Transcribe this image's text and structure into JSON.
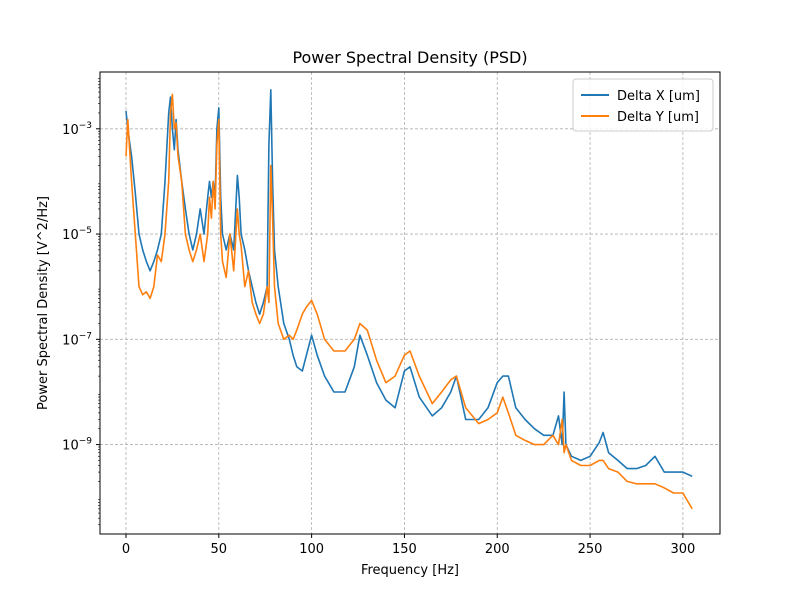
{
  "chart_data": {
    "type": "line",
    "title": "Power Spectral Density (PSD)",
    "xlabel": "Frequency [Hz]",
    "ylabel": "Power Spectral Density [V^2/Hz]",
    "xlim": [
      -14,
      320
    ],
    "ylim": [
      2e-11,
      0.012
    ],
    "yscale": "log",
    "grid": true,
    "legend_position": "top-right",
    "x_ticks": [
      {
        "value": 0,
        "label": "0"
      },
      {
        "value": 50,
        "label": "50"
      },
      {
        "value": 100,
        "label": "100"
      },
      {
        "value": 150,
        "label": "150"
      },
      {
        "value": 200,
        "label": "200"
      },
      {
        "value": 250,
        "label": "250"
      },
      {
        "value": 300,
        "label": "300"
      }
    ],
    "y_ticks": [
      {
        "value": 0.001,
        "base": "10",
        "exp": "−3"
      },
      {
        "value": 1e-05,
        "base": "10",
        "exp": "−5"
      },
      {
        "value": 1e-07,
        "base": "10",
        "exp": "−7"
      },
      {
        "value": 1e-09,
        "base": "10",
        "exp": "−9"
      }
    ],
    "series": [
      {
        "name": "Delta X [um]",
        "color": "#1f77b4",
        "x": [
          0,
          1,
          3,
          5,
          7,
          9,
          11,
          13,
          15,
          17,
          19,
          21,
          23,
          24,
          25,
          26,
          27,
          28,
          30,
          32,
          34,
          36,
          38,
          40,
          42,
          44,
          45,
          46,
          47,
          48,
          49,
          50,
          51,
          52,
          54,
          56,
          58,
          60,
          61,
          62,
          64,
          66,
          68,
          70,
          72,
          74,
          76,
          77,
          78,
          79,
          80,
          82,
          85,
          88,
          90,
          92,
          95,
          100,
          103,
          107,
          112,
          118,
          123,
          126,
          130,
          135,
          140,
          145,
          150,
          153,
          158,
          165,
          170,
          175,
          178,
          183,
          190,
          195,
          200,
          203,
          206,
          210,
          215,
          220,
          225,
          230,
          233,
          235,
          236,
          237,
          240,
          245,
          250,
          255,
          257,
          260,
          265,
          270,
          275,
          280,
          285,
          290,
          295,
          300,
          305
        ],
        "y": [
          0.0022,
          0.001,
          0.0003,
          6e-05,
          1e-05,
          5e-06,
          3e-06,
          2e-06,
          3e-06,
          5e-06,
          1e-05,
          0.0001,
          0.002,
          0.004,
          0.001,
          0.0004,
          0.0015,
          0.0004,
          0.0001,
          3e-05,
          1e-05,
          5e-06,
          1e-05,
          3e-05,
          1e-05,
          5e-05,
          0.0001,
          5e-05,
          0.0001,
          5e-05,
          0.001,
          0.0025,
          5e-05,
          1e-05,
          5e-06,
          1e-05,
          5e-06,
          0.00013,
          5e-05,
          1e-05,
          5e-06,
          2e-06,
          1e-06,
          5e-07,
          3e-07,
          5e-07,
          1e-06,
          0.0005,
          0.0055,
          0.0001,
          5e-06,
          1e-06,
          2e-07,
          1e-07,
          5e-08,
          3e-08,
          2.5e-08,
          1.2e-07,
          5e-08,
          2e-08,
          1e-08,
          1e-08,
          3e-08,
          1.2e-07,
          5e-08,
          1.5e-08,
          7e-09,
          5e-09,
          2.5e-08,
          3e-08,
          8e-09,
          3.5e-09,
          5e-09,
          1e-08,
          2e-08,
          3e-09,
          3e-09,
          5e-09,
          1.5e-08,
          2e-08,
          2e-08,
          5e-09,
          3e-09,
          2e-09,
          1.5e-09,
          1.5e-09,
          3.5e-09,
          1e-09,
          1e-08,
          1e-09,
          6e-10,
          5e-10,
          6e-10,
          1.1e-09,
          1.7e-09,
          7e-10,
          5e-10,
          3.5e-10,
          3.5e-10,
          4e-10,
          6e-10,
          3e-10,
          3e-10,
          3e-10,
          2.5e-10
        ]
      },
      {
        "name": "Delta Y [um]",
        "color": "#ff7f0e",
        "x": [
          0,
          1,
          3,
          5,
          7,
          9,
          11,
          13,
          15,
          17,
          19,
          21,
          23,
          24,
          25,
          26,
          27,
          28,
          30,
          32,
          34,
          36,
          38,
          40,
          42,
          44,
          45,
          46,
          47,
          48,
          49,
          50,
          51,
          52,
          54,
          56,
          58,
          60,
          61,
          62,
          64,
          66,
          68,
          70,
          72,
          74,
          76,
          77,
          78,
          79,
          80,
          82,
          85,
          88,
          90,
          92,
          95,
          97,
          100,
          103,
          107,
          112,
          118,
          123,
          126,
          130,
          135,
          140,
          145,
          150,
          153,
          158,
          165,
          170,
          175,
          178,
          183,
          190,
          195,
          200,
          203,
          206,
          210,
          215,
          220,
          225,
          230,
          233,
          235,
          236,
          237,
          240,
          245,
          250,
          255,
          257,
          260,
          265,
          270,
          275,
          280,
          285,
          290,
          295,
          300,
          305
        ],
        "y": [
          0.0003,
          0.0015,
          0.0001,
          1e-05,
          1e-06,
          7e-07,
          8e-07,
          6e-07,
          1e-06,
          4e-06,
          3e-06,
          1e-05,
          0.0001,
          0.002,
          0.0045,
          0.001,
          0.0013,
          0.0003,
          0.0001,
          1e-05,
          5e-06,
          3e-06,
          5e-06,
          1e-05,
          3e-06,
          1e-05,
          5e-05,
          2e-05,
          0.0001,
          3e-05,
          0.0005,
          0.0015,
          1e-05,
          3e-06,
          1.5e-06,
          1e-05,
          2e-06,
          3e-05,
          1e-05,
          6e-06,
          1e-06,
          2e-06,
          5e-07,
          3e-07,
          2e-07,
          3e-07,
          1e-06,
          5e-07,
          0.0002,
          2e-05,
          1e-06,
          2e-07,
          1e-07,
          1.2e-07,
          1e-07,
          1.5e-07,
          3e-07,
          4e-07,
          5.5e-07,
          3e-07,
          1e-07,
          6e-08,
          6e-08,
          1e-07,
          2e-07,
          1.5e-07,
          4e-08,
          1.5e-08,
          2e-08,
          5e-08,
          6e-08,
          2e-08,
          6e-09,
          1e-08,
          1.7e-08,
          2e-08,
          5e-09,
          2.5e-09,
          3e-09,
          4e-09,
          8e-09,
          4e-09,
          1.5e-09,
          1.2e-09,
          1e-09,
          1e-09,
          1.5e-09,
          1e-09,
          3e-09,
          7e-10,
          1e-09,
          5e-10,
          4e-10,
          4e-10,
          5e-10,
          5e-10,
          3.5e-10,
          3e-10,
          2e-10,
          1.8e-10,
          1.8e-10,
          1.8e-10,
          1.5e-10,
          1.2e-10,
          1.2e-10,
          6e-11
        ]
      }
    ]
  }
}
